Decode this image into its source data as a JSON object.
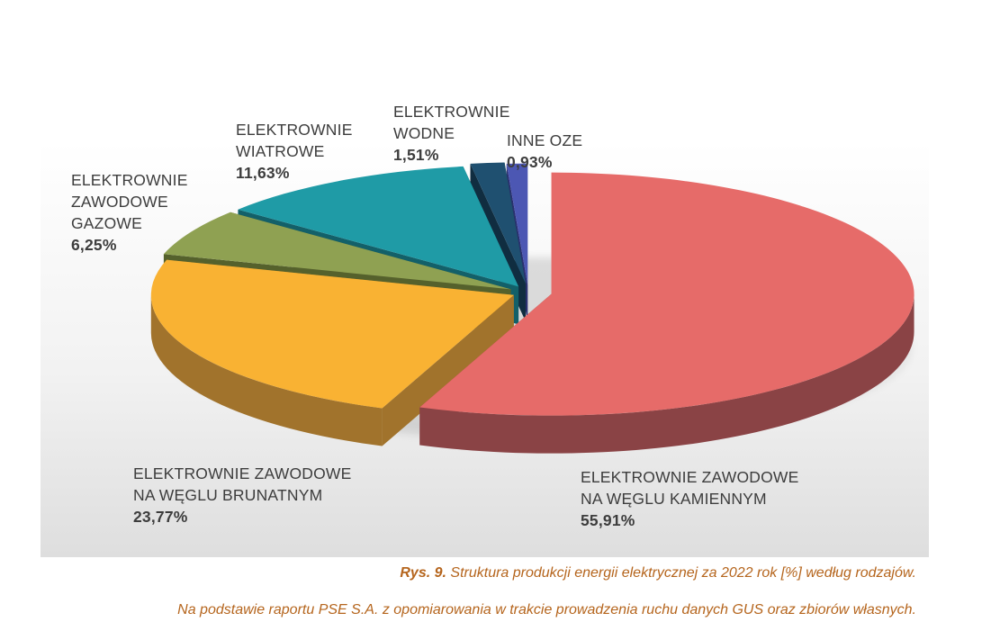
{
  "chart_data": {
    "type": "pie",
    "slices": [
      {
        "label_lines": [
          "ELEKTROWNIE ZAWODOWE",
          "NA WĘGLU KAMIENNYM"
        ],
        "value_label": "55,91%",
        "value": 55.91,
        "color": "#e66b69",
        "side_color": "#8a4345"
      },
      {
        "label_lines": [
          "ELEKTROWNIE ZAWODOWE",
          "NA WĘGLU BRUNATNYM"
        ],
        "value_label": "23,77%",
        "value": 23.77,
        "color": "#f9b233",
        "side_color": "#a1732c"
      },
      {
        "label_lines": [
          "ELEKTROWNIE",
          "ZAWODOWE",
          "GAZOWE"
        ],
        "value_label": "6,25%",
        "value": 6.25,
        "color": "#8fa152",
        "side_color": "#55612c"
      },
      {
        "label_lines": [
          "ELEKTROWNIE",
          "WIATROWE"
        ],
        "value_label": "11,63%",
        "value": 11.63,
        "color": "#1f9ba6",
        "side_color": "#136069"
      },
      {
        "label_lines": [
          "ELEKTROWNIE",
          "WODNE"
        ],
        "value_label": "1,51%",
        "value": 1.51,
        "color": "#1f5070",
        "side_color": "#102d40"
      },
      {
        "label_lines": [
          "INNE OZE"
        ],
        "value_label": "0,93%",
        "value": 0.93,
        "color": "#4c57b3",
        "side_color": "#2a3170"
      }
    ]
  },
  "caption": {
    "fig_no": "Rys. 9.",
    "text": " Struktura produkcji energii elektrycznej za 2022 rok [%] według rodzajów."
  },
  "source": "Na podstawie raportu PSE S.A. z opomiarowania w trakcie prowadzenia ruchu danych GUS  oraz zbiorów własnych."
}
